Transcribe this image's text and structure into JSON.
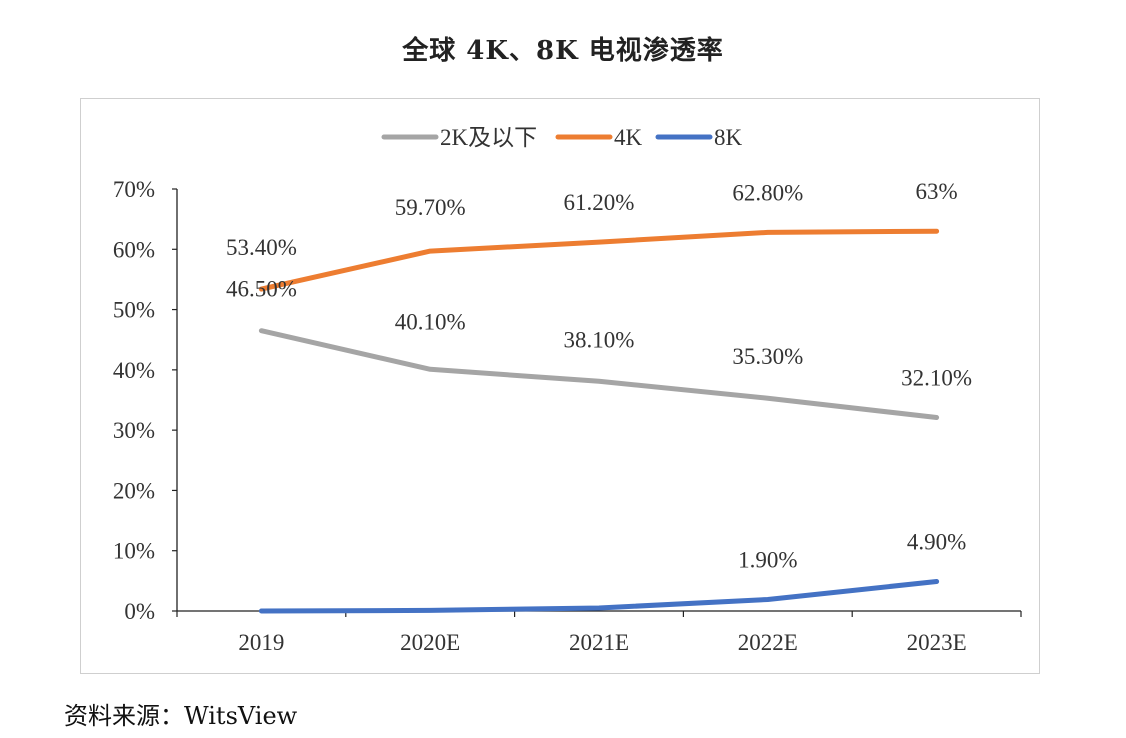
{
  "chart_data": {
    "type": "line",
    "title": "全球 4K、8K 电视渗透率",
    "categories": [
      "2019",
      "2020E",
      "2021E",
      "2022E",
      "2023E"
    ],
    "ylim": [
      0,
      70
    ],
    "yticks": [
      "0%",
      "10%",
      "20%",
      "30%",
      "40%",
      "50%",
      "60%",
      "70%"
    ],
    "ytick_values": [
      0,
      10,
      20,
      30,
      40,
      50,
      60,
      70
    ],
    "grid": false,
    "legend_position": "top",
    "series": [
      {
        "name": "2K及以下",
        "color": "#a5a5a5",
        "values": [
          46.5,
          40.1,
          38.1,
          35.3,
          32.1
        ],
        "labels": [
          "46.50%",
          "40.10%",
          "38.10%",
          "35.30%",
          "32.10%"
        ]
      },
      {
        "name": "4K",
        "color": "#ed7d31",
        "values": [
          53.4,
          59.7,
          61.2,
          62.8,
          63
        ],
        "labels": [
          "53.40%",
          "59.70%",
          "61.20%",
          "62.80%",
          "63%"
        ]
      },
      {
        "name": "8K",
        "color": "#4472c4",
        "values": [
          0,
          0.1,
          0.5,
          1.9,
          4.9
        ],
        "labels": [
          "",
          "",
          "",
          "1.90%",
          "4.90%"
        ]
      }
    ]
  },
  "source": {
    "label": "资料来源：",
    "value": "WitsView"
  }
}
